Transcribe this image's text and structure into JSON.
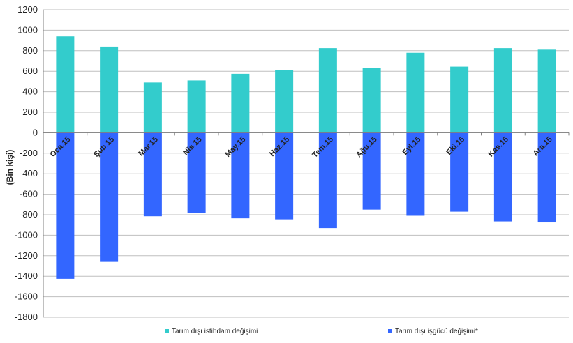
{
  "chart_data": {
    "type": "bar",
    "title": "",
    "xlabel": "",
    "ylabel": "(Bin kişi)",
    "ylim": [
      -1800,
      1200
    ],
    "ytick_step": 200,
    "grid": true,
    "legend_placement": "bottom",
    "categories": [
      "Oca.15",
      "Şub.15",
      "Mar.15",
      "Nis.15",
      "May.15",
      "Haz.15",
      "Tem.15",
      "Ağu.15",
      "Eyl.15",
      "Eki.15",
      "Kas.15",
      "Ara.15"
    ],
    "series": [
      {
        "name": "Tarım dışı istihdam değişimi",
        "color": "#33cccc",
        "values": [
          940,
          840,
          490,
          510,
          575,
          610,
          825,
          635,
          780,
          645,
          825,
          810
        ]
      },
      {
        "name": "Tarım dışı işgücü değişimi*",
        "color": "#3366ff",
        "values": [
          -1425,
          -1260,
          -815,
          -785,
          -835,
          -845,
          -930,
          -750,
          -810,
          -770,
          -865,
          -875
        ]
      }
    ]
  }
}
